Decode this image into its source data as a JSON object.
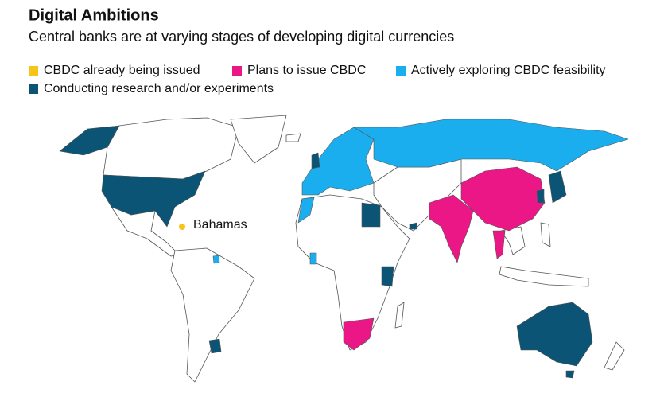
{
  "header": {
    "title": "Digital Ambitions",
    "subtitle": "Central banks are at varying stages of developing digital currencies"
  },
  "legend": [
    {
      "label": "CBDC already being issued",
      "color": "#f7c41a"
    },
    {
      "label": "Plans to issue CBDC",
      "color": "#eb1786"
    },
    {
      "label": "Actively exploring CBDC feasibility",
      "color": "#1aaeee"
    },
    {
      "label": "Conducting research and/or experiments",
      "color": "#0c5475"
    }
  ],
  "annotations": [
    {
      "label": "Bahamas"
    }
  ]
}
